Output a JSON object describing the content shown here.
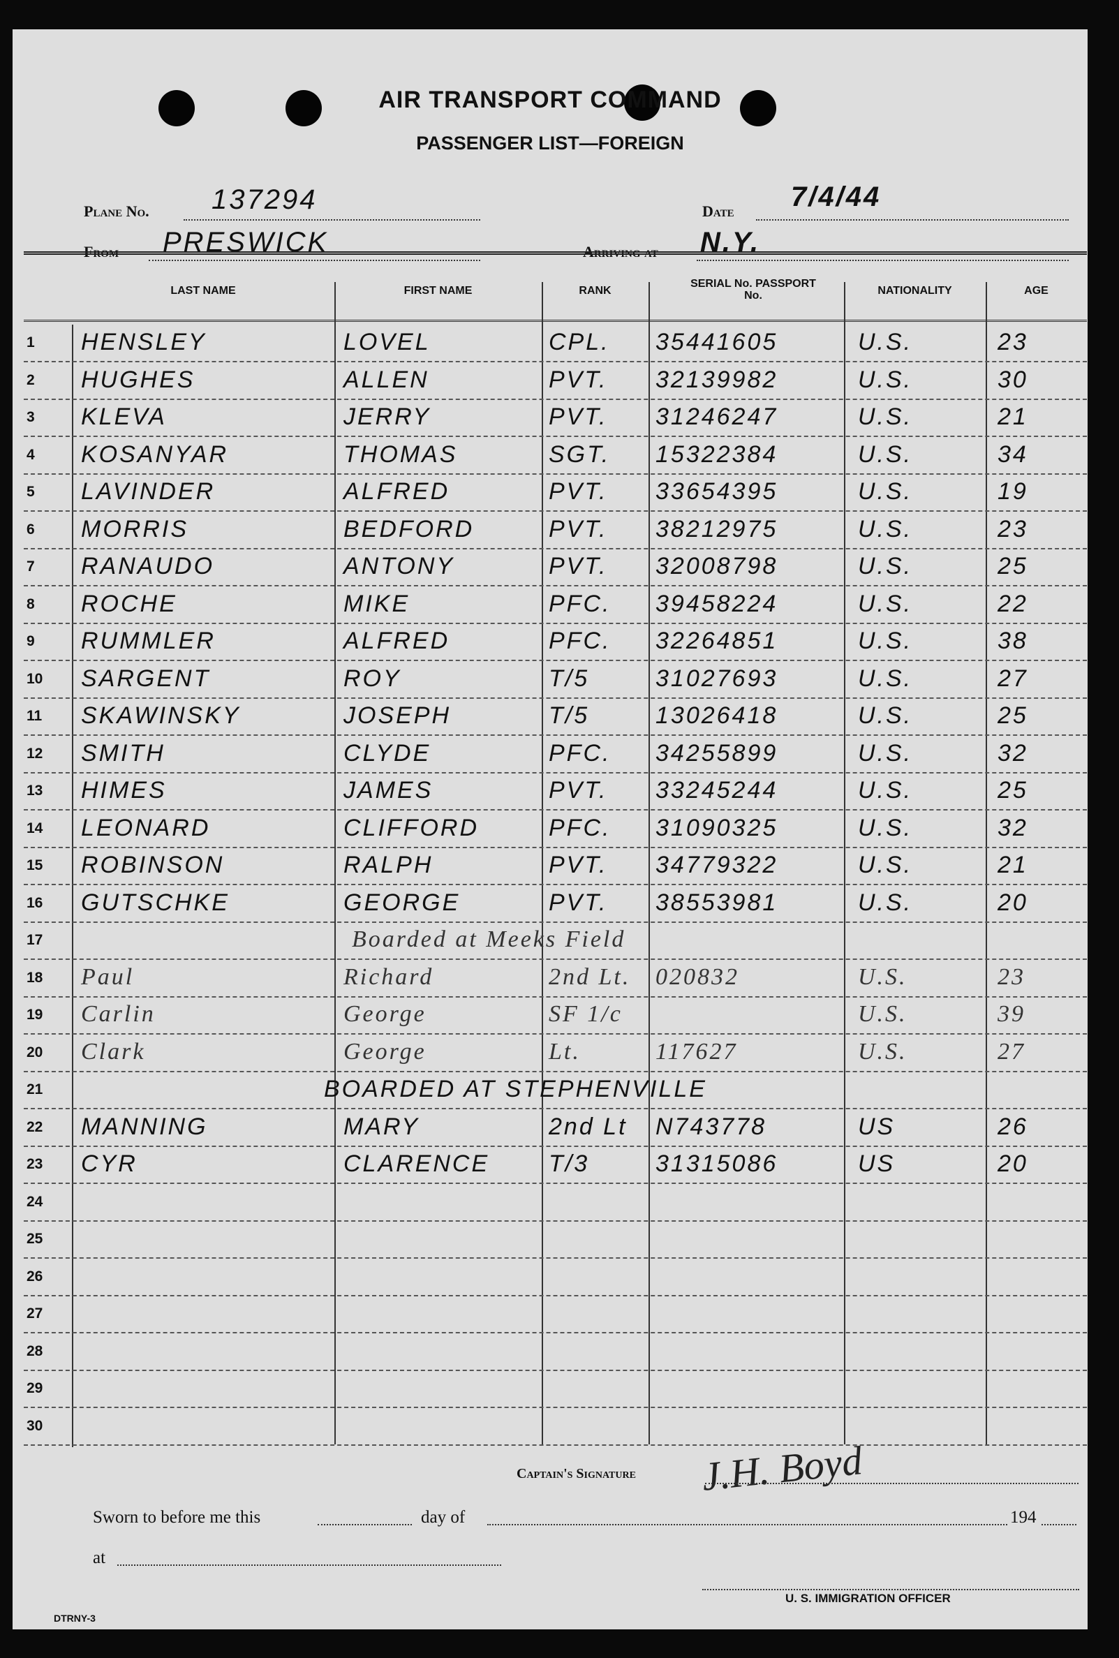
{
  "form": {
    "title": "AIR TRANSPORT COMMAND",
    "subtitle": "PASSENGER LIST—FOREIGN",
    "plane_label": "Plane No.",
    "plane_value": "137294",
    "date_label": "Date",
    "date_value": "7/4/44",
    "from_label": "From",
    "from_value": "PRESWICK",
    "arriving_label": "Arriving at",
    "arriving_value": "N.Y."
  },
  "table": {
    "headers": {
      "last_name": "LAST NAME",
      "first_name": "FIRST NAME",
      "rank": "RANK",
      "serial": "SERIAL No. PASSPORT No.",
      "nationality": "NATIONALITY",
      "age": "AGE"
    },
    "rows": [
      {
        "n": "1",
        "last": "HENSLEY",
        "first": "LOVEL",
        "rank": "CPL.",
        "serial": "35441605",
        "nat": "U.S.",
        "age": "23"
      },
      {
        "n": "2",
        "last": "HUGHES",
        "first": "ALLEN",
        "rank": "PVT.",
        "serial": "32139982",
        "nat": "U.S.",
        "age": "30"
      },
      {
        "n": "3",
        "last": "KLEVA",
        "first": "JERRY",
        "rank": "PVT.",
        "serial": "31246247",
        "nat": "U.S.",
        "age": "21"
      },
      {
        "n": "4",
        "last": "KOSANYAR",
        "first": "THOMAS",
        "rank": "SGT.",
        "serial": "15322384",
        "nat": "U.S.",
        "age": "34"
      },
      {
        "n": "5",
        "last": "LAVINDER",
        "first": "ALFRED",
        "rank": "PVT.",
        "serial": "33654395",
        "nat": "U.S.",
        "age": "19"
      },
      {
        "n": "6",
        "last": "MORRIS",
        "first": "BEDFORD",
        "rank": "PVT.",
        "serial": "38212975",
        "nat": "U.S.",
        "age": "23"
      },
      {
        "n": "7",
        "last": "RANAUDO",
        "first": "ANTONY",
        "rank": "PVT.",
        "serial": "32008798",
        "nat": "U.S.",
        "age": "25"
      },
      {
        "n": "8",
        "last": "ROCHE",
        "first": "MIKE",
        "rank": "PFC.",
        "serial": "39458224",
        "nat": "U.S.",
        "age": "22"
      },
      {
        "n": "9",
        "last": "RUMMLER",
        "first": "ALFRED",
        "rank": "PFC.",
        "serial": "32264851",
        "nat": "U.S.",
        "age": "38"
      },
      {
        "n": "10",
        "last": "SARGENT",
        "first": "ROY",
        "rank": "T/5",
        "serial": "31027693",
        "nat": "U.S.",
        "age": "27"
      },
      {
        "n": "11",
        "last": "SKAWINSKY",
        "first": "JOSEPH",
        "rank": "T/5",
        "serial": "13026418",
        "nat": "U.S.",
        "age": "25"
      },
      {
        "n": "12",
        "last": "SMITH",
        "first": "CLYDE",
        "rank": "PFC.",
        "serial": "34255899",
        "nat": "U.S.",
        "age": "32"
      },
      {
        "n": "13",
        "last": "HIMES",
        "first": "JAMES",
        "rank": "PVT.",
        "serial": "33245244",
        "nat": "U.S.",
        "age": "25"
      },
      {
        "n": "14",
        "last": "LEONARD",
        "first": "CLIFFORD",
        "rank": "PFC.",
        "serial": "31090325",
        "nat": "U.S.",
        "age": "32"
      },
      {
        "n": "15",
        "last": "ROBINSON",
        "first": "RALPH",
        "rank": "PVT.",
        "serial": "34779322",
        "nat": "U.S.",
        "age": "21"
      },
      {
        "n": "16",
        "last": "GUTSCHKE",
        "first": "GEORGE",
        "rank": "PVT.",
        "serial": "38553981",
        "nat": "U.S.",
        "age": "20"
      },
      {
        "n": "17",
        "note": "Boarded at Meeks Field",
        "script": true
      },
      {
        "n": "18",
        "last": "Paul",
        "first": "Richard",
        "rank": "2nd Lt.",
        "serial": "020832",
        "nat": "U.S.",
        "age": "23",
        "script": true
      },
      {
        "n": "19",
        "last": "Carlin",
        "first": "George",
        "rank": "SF 1/c",
        "serial": "",
        "nat": "U.S.",
        "age": "39",
        "script": true
      },
      {
        "n": "20",
        "last": "Clark",
        "first": "George",
        "rank": "Lt.",
        "serial": "117627",
        "nat": "U.S.",
        "age": "27",
        "script": true
      },
      {
        "n": "21",
        "note": "BOARDED AT STEPHENVILLE"
      },
      {
        "n": "22",
        "last": "MANNING",
        "first": "MARY",
        "rank": "2nd Lt",
        "serial": "N743778",
        "nat": "US",
        "age": "26"
      },
      {
        "n": "23",
        "last": "CYR",
        "first": "CLARENCE",
        "rank": "T/3",
        "serial": "31315086",
        "nat": "US",
        "age": "20"
      },
      {
        "n": "24"
      },
      {
        "n": "25"
      },
      {
        "n": "26"
      },
      {
        "n": "27"
      },
      {
        "n": "28"
      },
      {
        "n": "29"
      },
      {
        "n": "30"
      }
    ]
  },
  "footer": {
    "captain_label": "Captain's Signature",
    "captain_signature": "J.H. Boyd",
    "sworn_label": "Sworn to before me this",
    "day_of_label": "day of",
    "year_prefix": "194",
    "at_label": "at",
    "officer_label": "U. S. IMMIGRATION OFFICER",
    "form_code": "DTRNY-3"
  }
}
